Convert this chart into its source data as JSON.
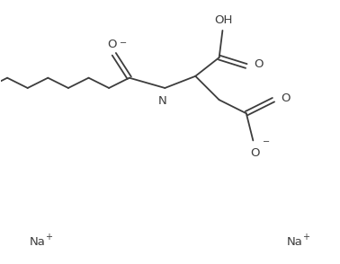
{
  "background_color": "#ffffff",
  "line_color": "#3d3d3d",
  "line_width": 1.3,
  "figsize": [
    3.78,
    2.94
  ],
  "dpi": 100,
  "font_size": 9.5,
  "font_size_small": 7,
  "text_color": "#3d3d3d",
  "xlim": [
    0,
    10
  ],
  "ylim": [
    0,
    7.8
  ]
}
